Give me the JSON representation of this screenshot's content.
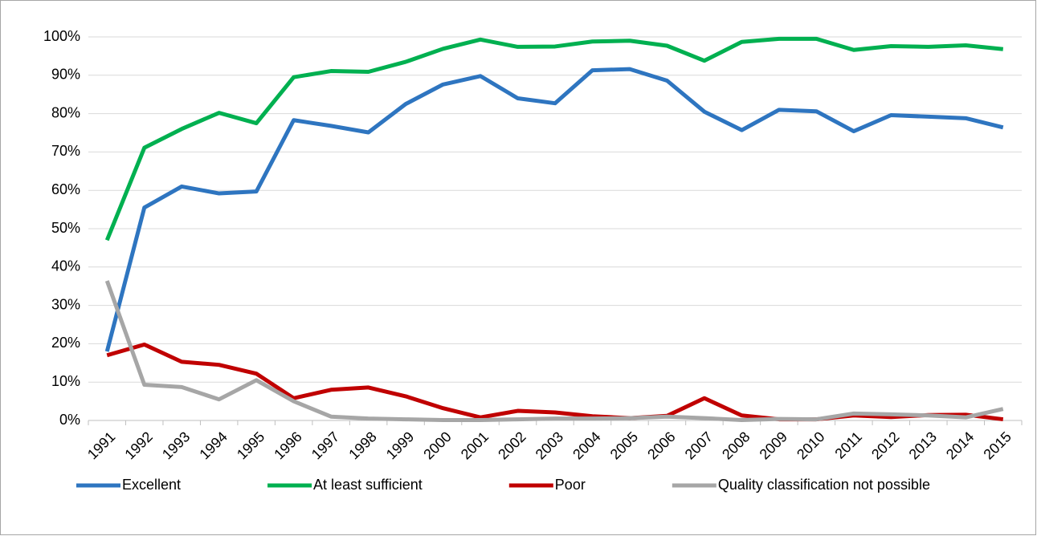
{
  "chart_data": {
    "type": "line",
    "categories": [
      "1991",
      "1992",
      "1993",
      "1994",
      "1995",
      "1996",
      "1997",
      "1998",
      "1999",
      "2000",
      "2001",
      "2002",
      "2003",
      "2004",
      "2005",
      "2006",
      "2007",
      "2008",
      "2009",
      "2010",
      "2011",
      "2012",
      "2013",
      "2014",
      "2015"
    ],
    "series": [
      {
        "name": "Excellent",
        "color": "#2e75c0",
        "values": [
          18,
          55.5,
          61,
          59.2,
          59.7,
          78.3,
          76.8,
          75.1,
          82.5,
          87.6,
          89.8,
          84,
          82.7,
          91.3,
          91.6,
          88.6,
          80.5,
          75.7,
          81,
          80.6,
          75.4,
          79.6,
          79.2,
          78.8,
          76.4
        ]
      },
      {
        "name": "At least sufficient",
        "color": "#00b050",
        "values": [
          47,
          71.1,
          76,
          80.2,
          77.5,
          89.5,
          91.1,
          90.9,
          93.5,
          96.9,
          99.3,
          97.4,
          97.5,
          98.8,
          99,
          97.7,
          93.8,
          98.7,
          99.5,
          99.5,
          96.6,
          97.6,
          97.4,
          97.8,
          96.8
        ]
      },
      {
        "name": "Poor",
        "color": "#c00000",
        "values": [
          17,
          19.8,
          15.3,
          14.5,
          12.2,
          5.8,
          8,
          8.6,
          6.3,
          3.2,
          0.8,
          2.5,
          2.1,
          1.1,
          0.6,
          1.2,
          5.8,
          1.3,
          0.3,
          0.3,
          1.3,
          0.9,
          1.4,
          1.5,
          0.3
        ]
      },
      {
        "name": "Quality classification not possible",
        "color": "#a6a6a6",
        "values": [
          36.4,
          9.3,
          8.7,
          5.5,
          10.5,
          5,
          1,
          0.5,
          0.3,
          0.1,
          0.1,
          0.3,
          0.5,
          0.5,
          0.6,
          1,
          0.6,
          0.1,
          0.4,
          0.3,
          1.8,
          1.6,
          1.3,
          0.8,
          3
        ]
      }
    ],
    "ylim": [
      0,
      100
    ],
    "yticks": [
      {
        "value": 0,
        "label": "0%"
      },
      {
        "value": 10,
        "label": "10%"
      },
      {
        "value": 20,
        "label": "20%"
      },
      {
        "value": 30,
        "label": "30%"
      },
      {
        "value": 40,
        "label": "40%"
      },
      {
        "value": 50,
        "label": "50%"
      },
      {
        "value": 60,
        "label": "60%"
      },
      {
        "value": 70,
        "label": "70%"
      },
      {
        "value": 80,
        "label": "80%"
      },
      {
        "value": 90,
        "label": "90%"
      },
      {
        "value": 100,
        "label": "100%"
      }
    ],
    "grid": true,
    "legend": "bottom"
  }
}
